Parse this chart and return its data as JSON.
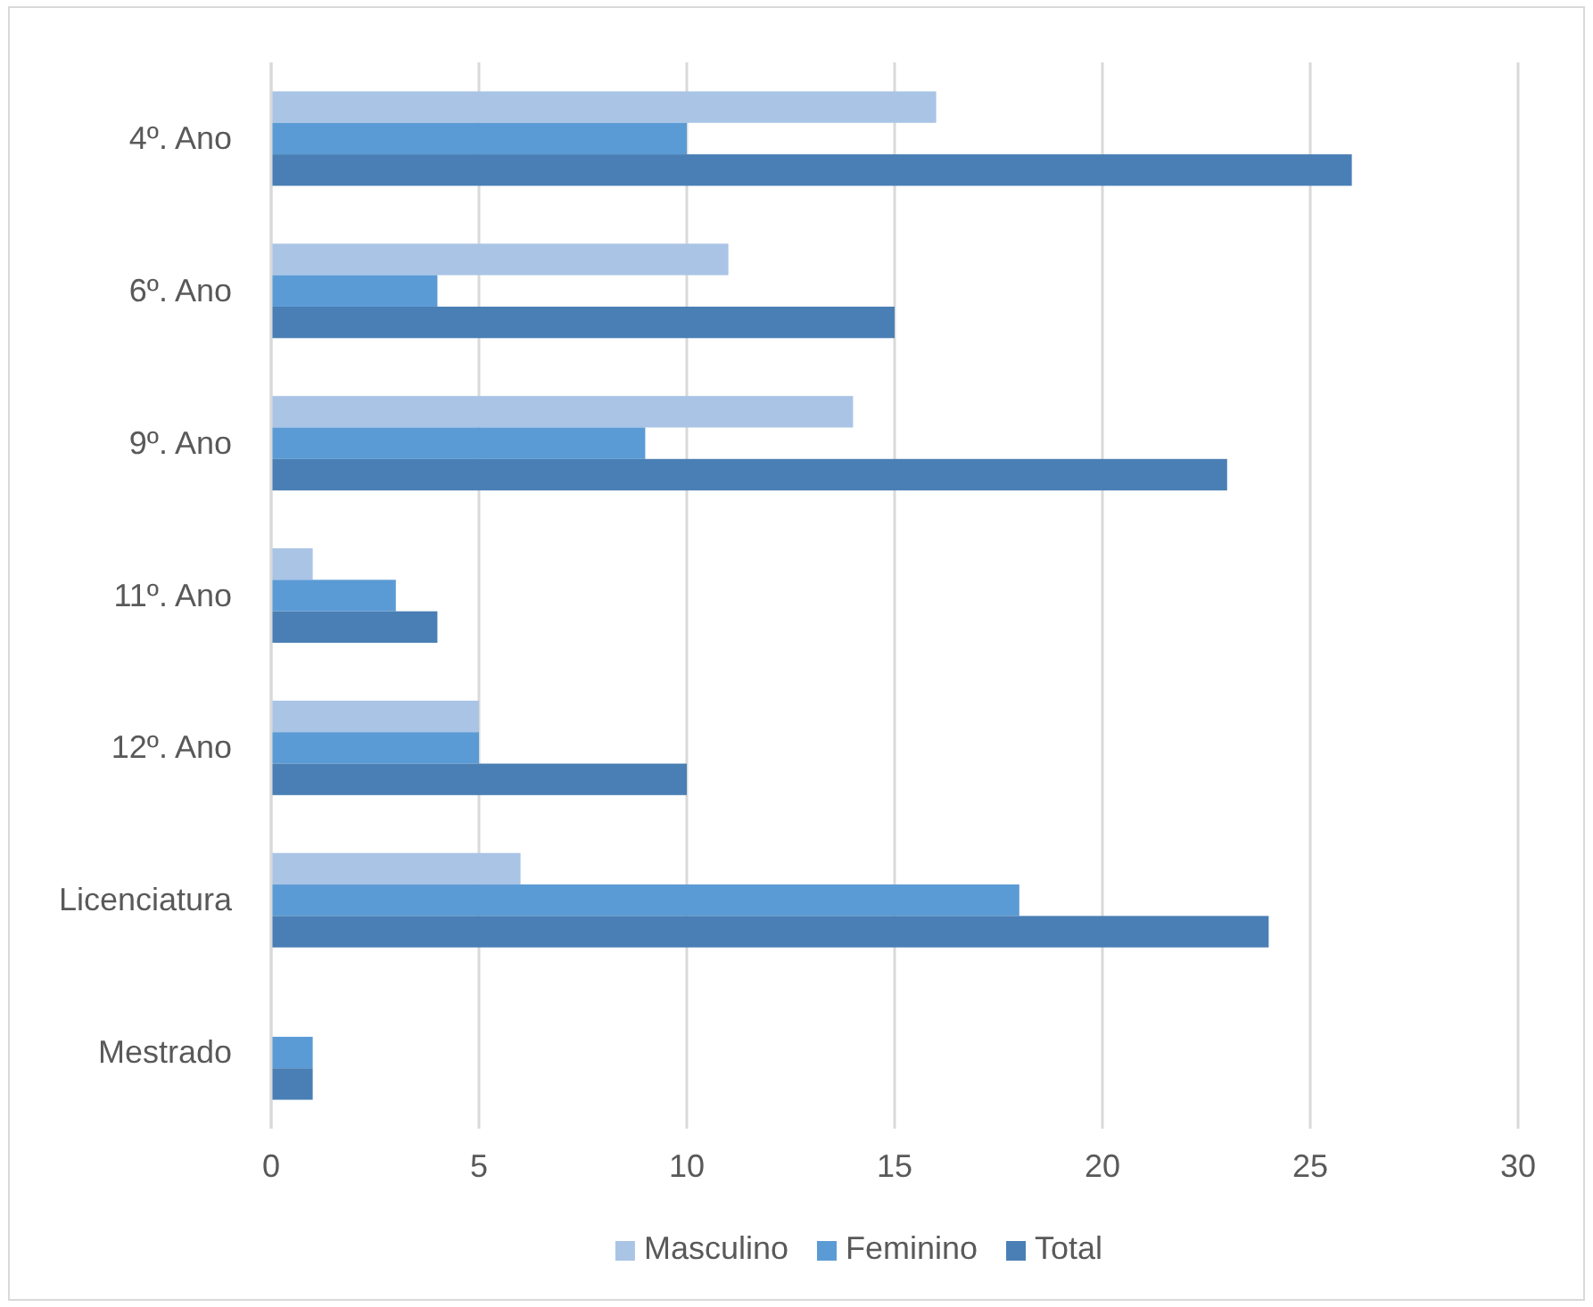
{
  "chart_data": {
    "type": "bar",
    "orientation": "horizontal",
    "categories": [
      "4º. Ano",
      "6º. Ano",
      "9º. Ano",
      "11º. Ano",
      "12º. Ano",
      "Licenciatura",
      "Mestrado"
    ],
    "series": [
      {
        "name": "Masculino",
        "color": "#aac4e6",
        "values": [
          16,
          11,
          14,
          1,
          5,
          6,
          0
        ]
      },
      {
        "name": "Feminino",
        "color": "#5b9bd5",
        "values": [
          10,
          4,
          9,
          3,
          5,
          18,
          1
        ]
      },
      {
        "name": "Total",
        "color": "#4a7fb5",
        "values": [
          26,
          15,
          23,
          4,
          10,
          24,
          1
        ]
      }
    ],
    "xlim": [
      0,
      30
    ],
    "xticks": [
      0,
      5,
      10,
      15,
      20,
      25,
      30
    ],
    "grid": "x",
    "legend": "bottom"
  }
}
